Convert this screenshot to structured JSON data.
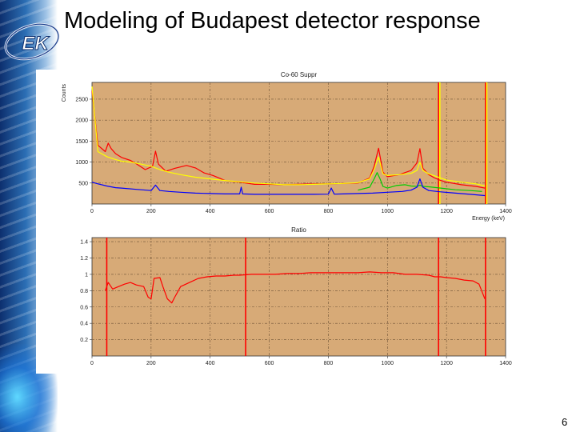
{
  "slide": {
    "title": "Modeling of Budapest detector response",
    "page_number": "6"
  },
  "logo": {
    "text": "EK"
  },
  "colors": {
    "plot_background": "#d7aa77",
    "grid": "#6d5035",
    "red": "#ff0000",
    "yellow": "#ffff00",
    "green": "#00cc00",
    "blue": "#0000ff"
  },
  "chart_data": [
    {
      "type": "line",
      "title": "Co-60 Suppr",
      "xlabel": "Energy (keV)",
      "ylabel": "Counts",
      "xlim": [
        0,
        1400
      ],
      "ylim": [
        0,
        2900
      ],
      "xticks": [
        0,
        200,
        400,
        600,
        800,
        1000,
        1200,
        1400
      ],
      "yticks": [
        500,
        1000,
        1500,
        2000,
        2500
      ],
      "grid": true,
      "series": [
        {
          "color": "red",
          "x": [
            0,
            20,
            45,
            55,
            65,
            80,
            100,
            130,
            150,
            180,
            205,
            215,
            225,
            250,
            280,
            320,
            350,
            380,
            410,
            450,
            500,
            550,
            600,
            650,
            700,
            750,
            800,
            850,
            900,
            940,
            955,
            970,
            985,
            1000,
            1040,
            1080,
            1100,
            1110,
            1120,
            1140,
            1160,
            1180,
            1200,
            1250,
            1300,
            1330
          ],
          "y": [
            2700,
            1400,
            1250,
            1450,
            1320,
            1200,
            1110,
            1040,
            960,
            820,
            900,
            1260,
            950,
            780,
            850,
            920,
            860,
            740,
            680,
            560,
            520,
            470,
            470,
            460,
            470,
            480,
            480,
            490,
            500,
            620,
            900,
            1330,
            760,
            650,
            700,
            800,
            980,
            1320,
            850,
            700,
            620,
            560,
            520,
            460,
            420,
            380
          ]
        },
        {
          "color": "yellow",
          "x": [
            0,
            20,
            50,
            80,
            100,
            130,
            160,
            200,
            230,
            260,
            300,
            350,
            400,
            450,
            500,
            550,
            600,
            650,
            700,
            750,
            800,
            850,
            900,
            940,
            955,
            970,
            985,
            1000,
            1040,
            1080,
            1100,
            1110,
            1120,
            1140,
            1180,
            1200,
            1250,
            1300,
            1330
          ],
          "y": [
            2800,
            1250,
            1130,
            1060,
            1020,
            1000,
            960,
            900,
            820,
            760,
            700,
            640,
            600,
            560,
            530,
            500,
            480,
            460,
            460,
            470,
            480,
            490,
            510,
            600,
            820,
            1120,
            720,
            680,
            700,
            730,
            800,
            1000,
            800,
            720,
            620,
            570,
            520,
            480,
            430
          ]
        },
        {
          "color": "green",
          "x": [
            900,
            940,
            955,
            965,
            975,
            985,
            1000,
            1030,
            1060,
            1080,
            1100,
            1110,
            1120,
            1140,
            1180,
            1230,
            1280,
            1320
          ],
          "y": [
            330,
            400,
            600,
            750,
            600,
            420,
            380,
            440,
            460,
            430,
            420,
            450,
            420,
            410,
            380,
            340,
            320,
            300
          ]
        },
        {
          "color": "blue",
          "x": [
            0,
            20,
            50,
            80,
            100,
            150,
            200,
            215,
            230,
            260,
            300,
            350,
            400,
            450,
            500,
            505,
            510,
            550,
            600,
            650,
            700,
            750,
            800,
            810,
            820,
            850,
            900,
            950,
            1000,
            1050,
            1080,
            1100,
            1110,
            1120,
            1140,
            1180,
            1230,
            1280,
            1330
          ],
          "y": [
            520,
            480,
            430,
            390,
            380,
            350,
            320,
            450,
            320,
            300,
            280,
            260,
            250,
            240,
            240,
            400,
            240,
            230,
            230,
            230,
            230,
            230,
            235,
            380,
            235,
            240,
            250,
            260,
            280,
            300,
            330,
            400,
            600,
            400,
            320,
            290,
            260,
            230,
            200
          ]
        }
      ],
      "annotations": [
        {
          "kind": "vertical-line",
          "x": 1173,
          "colors": [
            "red",
            "yellow"
          ]
        },
        {
          "kind": "vertical-line",
          "x": 1332,
          "colors": [
            "red",
            "yellow"
          ]
        }
      ]
    },
    {
      "type": "line",
      "title": "Ratio",
      "xlabel": "",
      "ylabel": "",
      "xlim": [
        0,
        1400
      ],
      "ylim": [
        0,
        1.45
      ],
      "xticks": [
        0,
        200,
        400,
        600,
        800,
        1000,
        1200,
        1400
      ],
      "yticks": [
        0.2,
        0.4,
        0.6,
        0.8,
        1,
        1.2,
        1.4
      ],
      "ytick_labels": [
        "0.2",
        "0.4",
        "0.6",
        "0.8",
        "1",
        "1.2",
        "1.4"
      ],
      "grid": true,
      "series": [
        {
          "color": "red",
          "x": [
            45,
            55,
            70,
            90,
            110,
            130,
            150,
            175,
            190,
            200,
            210,
            230,
            240,
            255,
            270,
            280,
            300,
            330,
            360,
            390,
            420,
            450,
            480,
            500,
            540,
            580,
            620,
            660,
            700,
            740,
            780,
            820,
            860,
            900,
            940,
            980,
            1020,
            1060,
            1100,
            1140,
            1160,
            1180,
            1200,
            1230,
            1260,
            1290,
            1310,
            1330
          ],
          "y": [
            0.8,
            0.9,
            0.82,
            0.85,
            0.88,
            0.9,
            0.87,
            0.85,
            0.72,
            0.7,
            0.95,
            0.96,
            0.85,
            0.7,
            0.65,
            0.72,
            0.85,
            0.9,
            0.95,
            0.97,
            0.98,
            0.98,
            0.99,
            0.99,
            1.0,
            1.0,
            1.0,
            1.01,
            1.01,
            1.02,
            1.02,
            1.02,
            1.02,
            1.02,
            1.03,
            1.02,
            1.02,
            1.0,
            1.0,
            0.99,
            0.97,
            0.97,
            0.96,
            0.95,
            0.93,
            0.92,
            0.88,
            0.7
          ]
        }
      ],
      "annotations": [
        {
          "kind": "vertical-line",
          "x": 50,
          "color": "red"
        },
        {
          "kind": "vertical-line",
          "x": 520,
          "color": "red"
        },
        {
          "kind": "vertical-line",
          "x": 1173,
          "color": "red"
        },
        {
          "kind": "vertical-line",
          "x": 1332,
          "color": "red"
        }
      ]
    }
  ]
}
